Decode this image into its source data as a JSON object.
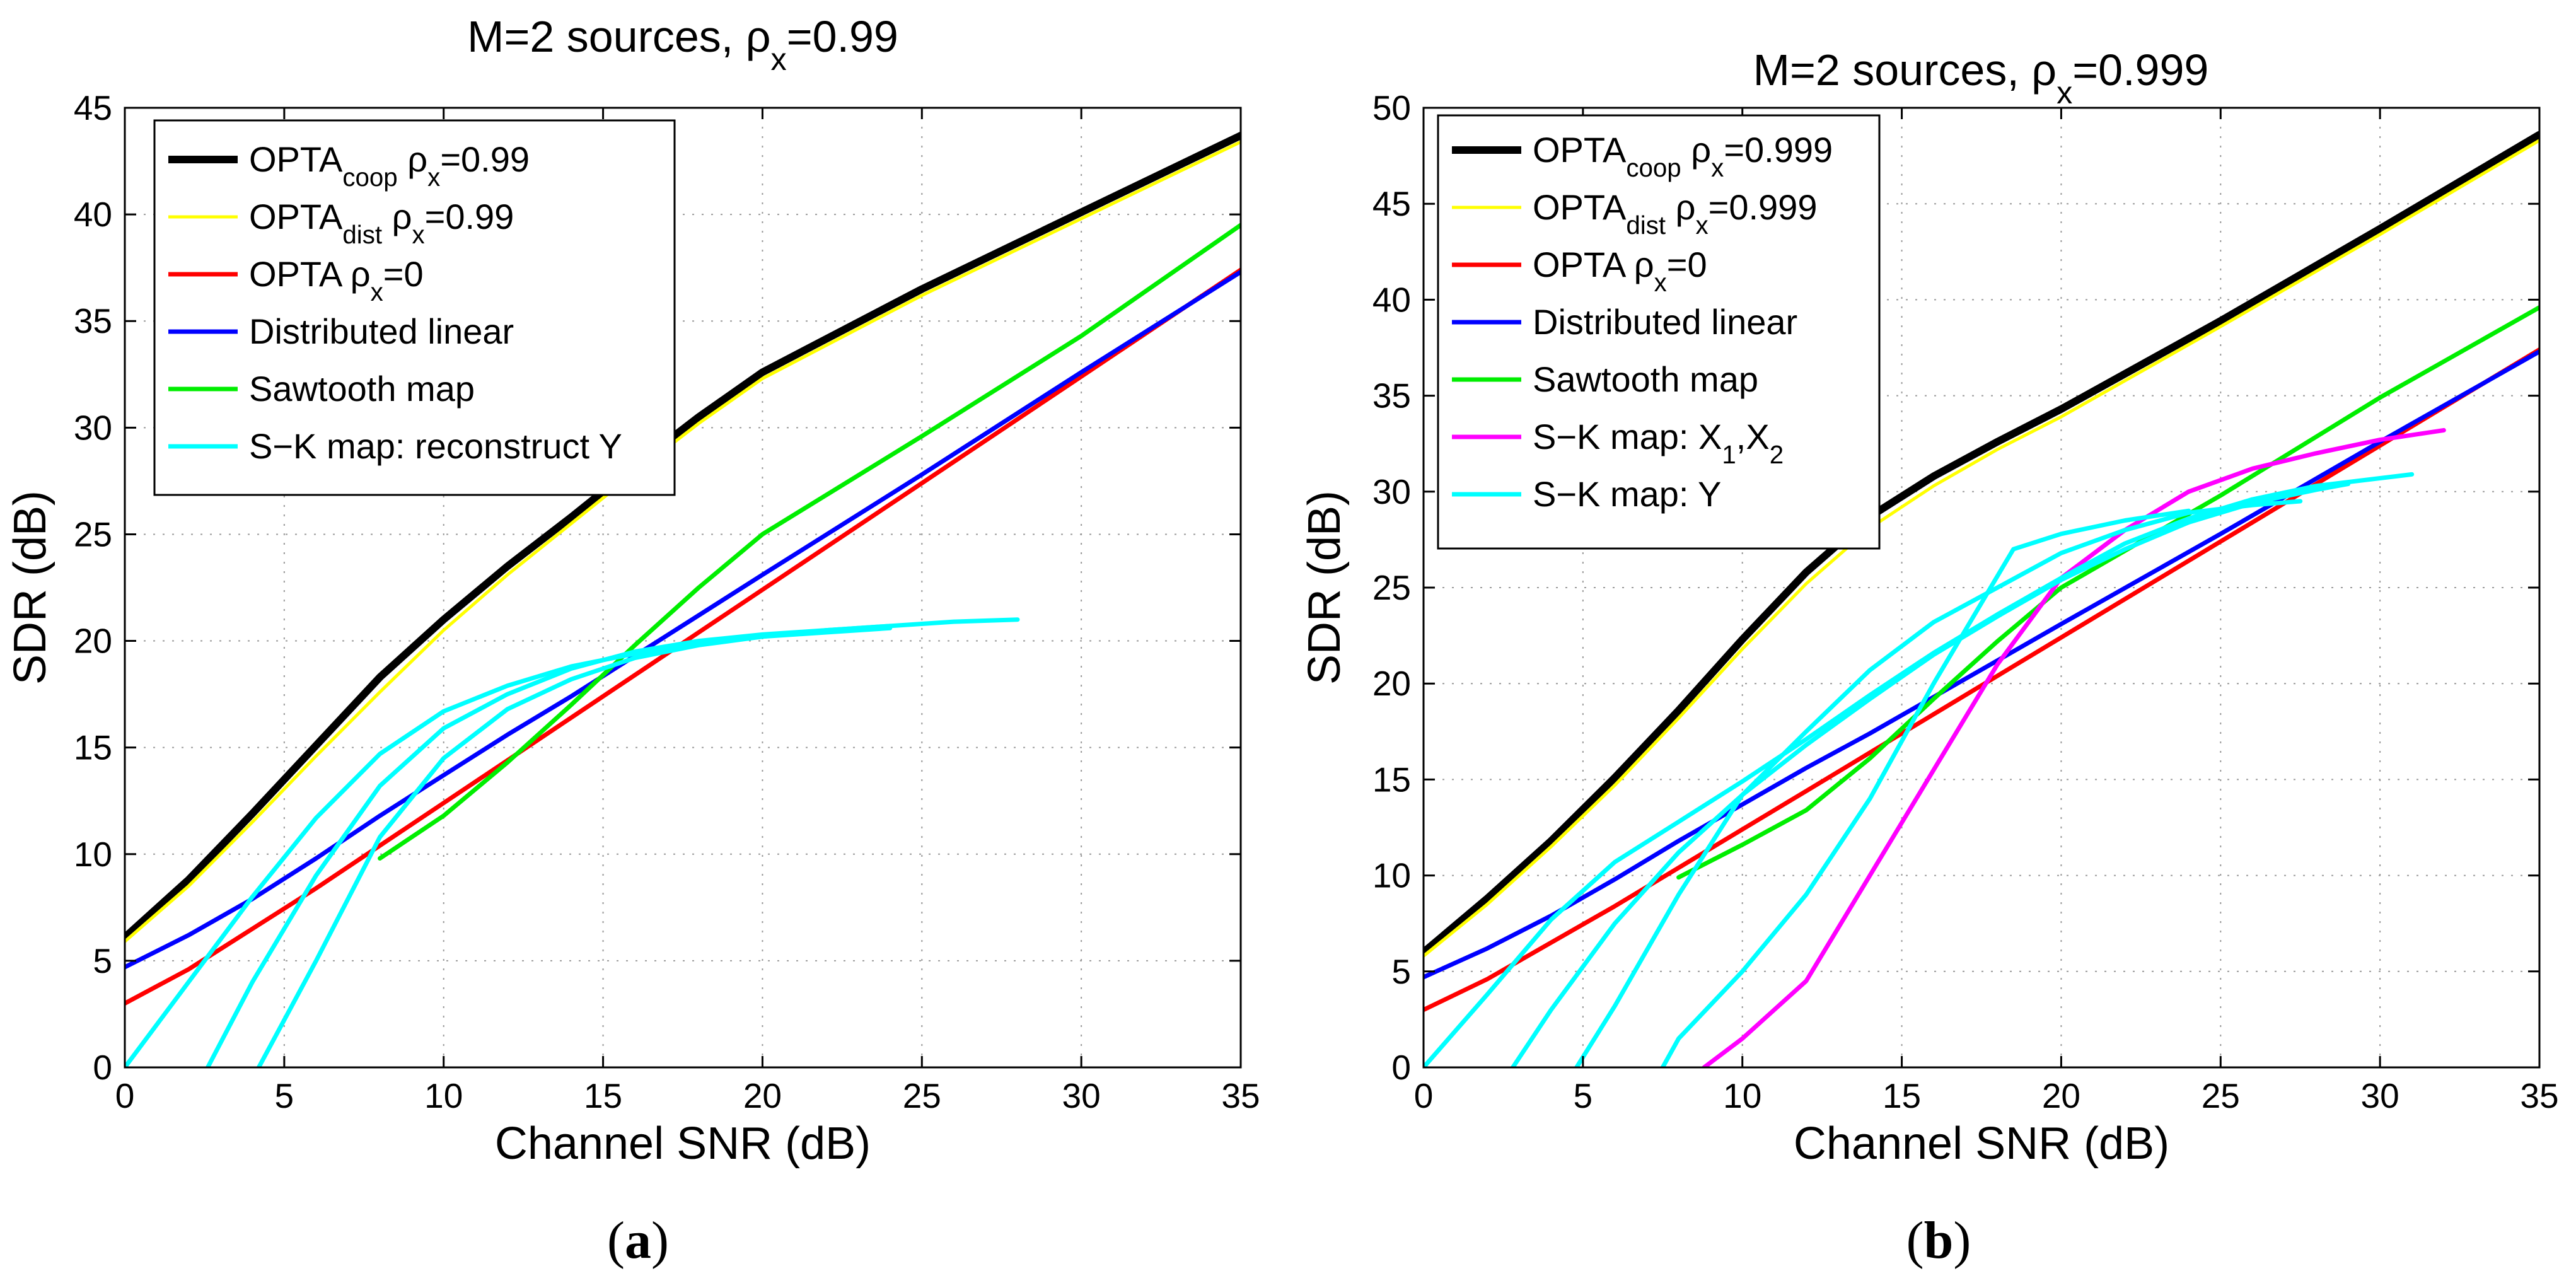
{
  "chart_data": [
    {
      "type": "line",
      "title": "M=2 sources, ρx=0.99",
      "title_parts": {
        "main": "M=2 sources, ρ",
        "sub": "x",
        "tail": "=0.99"
      },
      "panel_label": "a",
      "xlabel": "Channel SNR (dB)",
      "ylabel": "SDR (dB)",
      "xlim": [
        0,
        35
      ],
      "ylim": [
        0,
        45
      ],
      "xticks": [
        0,
        5,
        10,
        15,
        20,
        25,
        30,
        35
      ],
      "yticks": [
        0,
        5,
        10,
        15,
        20,
        25,
        30,
        35,
        40,
        45
      ],
      "grid": true,
      "legend_position": "top-left",
      "series": [
        {
          "name": "OPTAcoop ρx=0.99",
          "label_parts": [
            [
              "OPTA",
              ""
            ],
            [
              "coop",
              "sub"
            ],
            [
              " ρ",
              ""
            ],
            [
              "x",
              "sub"
            ],
            [
              "=0.99",
              ""
            ]
          ],
          "color": "#000000",
          "width": 12,
          "legend": true,
          "x": [
            0,
            2,
            4,
            6,
            8,
            10,
            12,
            14,
            16,
            18,
            20,
            25,
            30,
            35
          ],
          "y": [
            6.1,
            8.8,
            11.9,
            15.1,
            18.3,
            21.0,
            23.5,
            25.8,
            28.2,
            30.5,
            32.6,
            36.5,
            40.1,
            43.7
          ]
        },
        {
          "name": "OPTAdist ρx=0.99",
          "label_parts": [
            [
              "OPTA",
              ""
            ],
            [
              "dist",
              "sub"
            ],
            [
              " ρ",
              ""
            ],
            [
              "x",
              "sub"
            ],
            [
              "=0.99",
              ""
            ]
          ],
          "color": "#ffff00",
          "width": 5,
          "legend": true,
          "x": [
            0,
            2,
            4,
            6,
            8,
            10,
            12,
            14,
            16,
            18,
            20,
            25,
            30,
            35
          ],
          "y": [
            5.9,
            8.5,
            11.5,
            14.6,
            17.6,
            20.5,
            23.1,
            25.5,
            27.9,
            30.2,
            32.3,
            36.2,
            39.8,
            43.4
          ]
        },
        {
          "name": "OPTA ρx=0",
          "label_parts": [
            [
              "OPTA ρ",
              ""
            ],
            [
              "x",
              "sub"
            ],
            [
              "=0",
              ""
            ]
          ],
          "color": "#ff0000",
          "width": 7,
          "legend": true,
          "x": [
            0,
            2,
            4,
            6,
            8,
            10,
            12,
            14,
            16,
            18,
            20,
            25,
            30,
            35
          ],
          "y": [
            3.0,
            4.6,
            6.5,
            8.4,
            10.4,
            12.4,
            14.4,
            16.4,
            18.4,
            20.4,
            22.4,
            27.4,
            32.4,
            37.4
          ]
        },
        {
          "name": "Distributed linear",
          "label_parts": [
            [
              "Distributed linear",
              ""
            ]
          ],
          "color": "#0000ff",
          "width": 7,
          "legend": true,
          "x": [
            0,
            2,
            4,
            6,
            8,
            10,
            12,
            14,
            16,
            18,
            20,
            25,
            30,
            35
          ],
          "y": [
            4.7,
            6.2,
            7.9,
            9.8,
            11.8,
            13.7,
            15.6,
            17.4,
            19.3,
            21.2,
            23.1,
            27.8,
            32.6,
            37.3
          ]
        },
        {
          "name": "Sawtooth map",
          "label_parts": [
            [
              "Sawtooth map",
              ""
            ]
          ],
          "color": "#00ee00",
          "width": 7,
          "legend": true,
          "x": [
            8,
            10,
            12,
            14,
            16,
            18,
            20,
            25,
            30,
            35
          ],
          "y": [
            9.8,
            11.8,
            14.3,
            17.0,
            19.8,
            22.5,
            25.0,
            29.6,
            34.3,
            39.5
          ]
        },
        {
          "name": "S-K map: reconstruct Y",
          "label_parts": [
            [
              "S−K map: reconstruct Y",
              ""
            ]
          ],
          "color": "#00ffff",
          "width": 7,
          "legend": true,
          "x": [
            0,
            2,
            4,
            6,
            8,
            10,
            12,
            14,
            16,
            18,
            20,
            22,
            24,
            26,
            28
          ],
          "y": [
            0.0,
            4.0,
            8.0,
            11.7,
            14.7,
            16.7,
            17.9,
            18.8,
            19.4,
            19.9,
            20.2,
            20.5,
            20.7,
            20.9,
            21.0
          ]
        },
        {
          "name": "",
          "color": "#00ffff",
          "width": 7,
          "legend": false,
          "x": [
            2.6,
            4,
            6,
            8,
            10,
            12,
            14,
            16,
            18,
            20,
            22,
            24
          ],
          "y": [
            0.0,
            4.0,
            9.0,
            13.2,
            15.9,
            17.5,
            18.7,
            19.5,
            20.0,
            20.3,
            20.5,
            20.7
          ]
        },
        {
          "name": "",
          "color": "#00ffff",
          "width": 7,
          "legend": false,
          "x": [
            4.2,
            6,
            8,
            10,
            12,
            14,
            16,
            18,
            20,
            22,
            24
          ],
          "y": [
            0.0,
            5.0,
            10.8,
            14.5,
            16.8,
            18.2,
            19.2,
            19.8,
            20.2,
            20.4,
            20.6
          ]
        }
      ]
    },
    {
      "type": "line",
      "title": "M=2 sources, ρx=0.999",
      "title_parts": {
        "main": "M=2 sources, ρ",
        "sub": "x",
        "tail": "=0.999"
      },
      "panel_label": "b",
      "xlabel": "Channel SNR (dB)",
      "ylabel": "SDR (dB)",
      "xlim": [
        0,
        35
      ],
      "ylim": [
        0,
        50
      ],
      "xticks": [
        0,
        5,
        10,
        15,
        20,
        25,
        30,
        35
      ],
      "yticks": [
        0,
        5,
        10,
        15,
        20,
        25,
        30,
        35,
        40,
        45,
        50
      ],
      "grid": true,
      "legend_position": "top-left",
      "series": [
        {
          "name": "OPTAcoop ρx=0.999",
          "label_parts": [
            [
              "OPTA",
              ""
            ],
            [
              "coop",
              "sub"
            ],
            [
              " ρ",
              ""
            ],
            [
              "x",
              "sub"
            ],
            [
              "=0.999",
              ""
            ]
          ],
          "color": "#000000",
          "width": 12,
          "legend": true,
          "x": [
            0,
            2,
            4,
            6,
            8,
            10,
            12,
            14,
            16,
            18,
            20,
            25,
            30,
            35
          ],
          "y": [
            6.0,
            8.8,
            11.8,
            15.1,
            18.6,
            22.3,
            25.8,
            28.7,
            30.8,
            32.6,
            34.3,
            38.9,
            43.7,
            48.6
          ]
        },
        {
          "name": "OPTAdist ρx=0.999",
          "label_parts": [
            [
              "OPTA",
              ""
            ],
            [
              "dist",
              "sub"
            ],
            [
              " ρ",
              ""
            ],
            [
              "x",
              "sub"
            ],
            [
              "=0.999",
              ""
            ]
          ],
          "color": "#ffff00",
          "width": 5,
          "legend": true,
          "x": [
            0,
            2,
            4,
            6,
            8,
            10,
            12,
            14,
            16,
            18,
            20,
            25,
            30,
            35
          ],
          "y": [
            5.8,
            8.5,
            11.5,
            14.7,
            18.2,
            21.8,
            25.2,
            28.1,
            30.3,
            32.2,
            33.9,
            38.6,
            43.4,
            48.3
          ]
        },
        {
          "name": "OPTA ρx=0",
          "label_parts": [
            [
              "OPTA ρ",
              ""
            ],
            [
              "x",
              "sub"
            ],
            [
              "=0",
              ""
            ]
          ],
          "color": "#ff0000",
          "width": 7,
          "legend": true,
          "x": [
            0,
            2,
            4,
            6,
            8,
            10,
            12,
            14,
            16,
            18,
            20,
            25,
            30,
            35
          ],
          "y": [
            3.0,
            4.6,
            6.5,
            8.4,
            10.4,
            12.4,
            14.4,
            16.4,
            18.4,
            20.4,
            22.4,
            27.4,
            32.4,
            37.4
          ]
        },
        {
          "name": "Distributed linear",
          "label_parts": [
            [
              "Distributed linear",
              ""
            ]
          ],
          "color": "#0000ff",
          "width": 7,
          "legend": true,
          "x": [
            0,
            2,
            4,
            6,
            8,
            10,
            12,
            14,
            16,
            18,
            20,
            25,
            30,
            35
          ],
          "y": [
            4.7,
            6.2,
            7.9,
            9.8,
            11.8,
            13.7,
            15.6,
            17.4,
            19.3,
            21.2,
            23.1,
            27.8,
            32.6,
            37.3
          ]
        },
        {
          "name": "Sawtooth map",
          "label_parts": [
            [
              "Sawtooth map",
              ""
            ]
          ],
          "color": "#00ee00",
          "width": 7,
          "legend": true,
          "x": [
            8,
            10,
            12,
            14,
            16,
            18,
            20,
            25,
            30,
            35
          ],
          "y": [
            9.9,
            11.6,
            13.4,
            16.1,
            19.2,
            22.2,
            25.0,
            29.8,
            34.9,
            39.6
          ]
        },
        {
          "name": "S-K map: X1,X2",
          "label_parts": [
            [
              "S−K map: X",
              ""
            ],
            [
              "1",
              "sub"
            ],
            [
              ",X",
              ""
            ],
            [
              "2",
              "sub"
            ]
          ],
          "color": "#ff00ff",
          "width": 7,
          "legend": true,
          "x": [
            8.8,
            10,
            12,
            14,
            16,
            18,
            20,
            22,
            24,
            26,
            28,
            30,
            32
          ],
          "y": [
            0.0,
            1.5,
            4.5,
            10.0,
            15.5,
            21.0,
            25.5,
            28.0,
            30.0,
            31.2,
            32.0,
            32.7,
            33.2
          ]
        },
        {
          "name": "S-K map: Y",
          "label_parts": [
            [
              "S−K map: Y",
              ""
            ]
          ],
          "color": "#00ffff",
          "width": 7,
          "legend": true,
          "x": [
            0,
            2,
            4,
            6,
            8,
            10,
            12,
            14,
            16,
            18,
            20,
            22,
            24,
            26,
            28,
            30,
            31
          ],
          "y": [
            0.0,
            3.8,
            7.7,
            10.7,
            12.8,
            14.9,
            17.1,
            19.4,
            21.6,
            23.6,
            25.5,
            27.3,
            28.6,
            29.6,
            30.3,
            30.7,
            30.9
          ]
        },
        {
          "name": "",
          "color": "#00ffff",
          "width": 7,
          "legend": false,
          "x": [
            2.8,
            4,
            6,
            8,
            10,
            12,
            14,
            16,
            18,
            20,
            22,
            24,
            26,
            28,
            29
          ],
          "y": [
            0.0,
            3.0,
            7.5,
            11.2,
            14.2,
            16.8,
            19.2,
            21.5,
            23.5,
            25.4,
            27.0,
            28.4,
            29.4,
            30.1,
            30.4
          ]
        },
        {
          "name": "",
          "color": "#00ffff",
          "width": 7,
          "legend": false,
          "x": [
            4.8,
            6,
            8,
            10,
            12,
            14,
            16,
            18,
            20,
            22,
            24,
            26,
            27.5
          ],
          "y": [
            0.0,
            3.2,
            9.0,
            14.2,
            17.5,
            20.7,
            23.2,
            25.0,
            26.8,
            28.0,
            28.9,
            29.3,
            29.5
          ]
        },
        {
          "name": "",
          "color": "#00ffff",
          "width": 7,
          "legend": false,
          "x": [
            7.5,
            8,
            10,
            12,
            14,
            16,
            18.5,
            20,
            22,
            24
          ],
          "y": [
            0.0,
            1.5,
            5.0,
            9.0,
            14.0,
            20.0,
            27.0,
            27.8,
            28.5,
            29.0
          ]
        }
      ]
    }
  ]
}
